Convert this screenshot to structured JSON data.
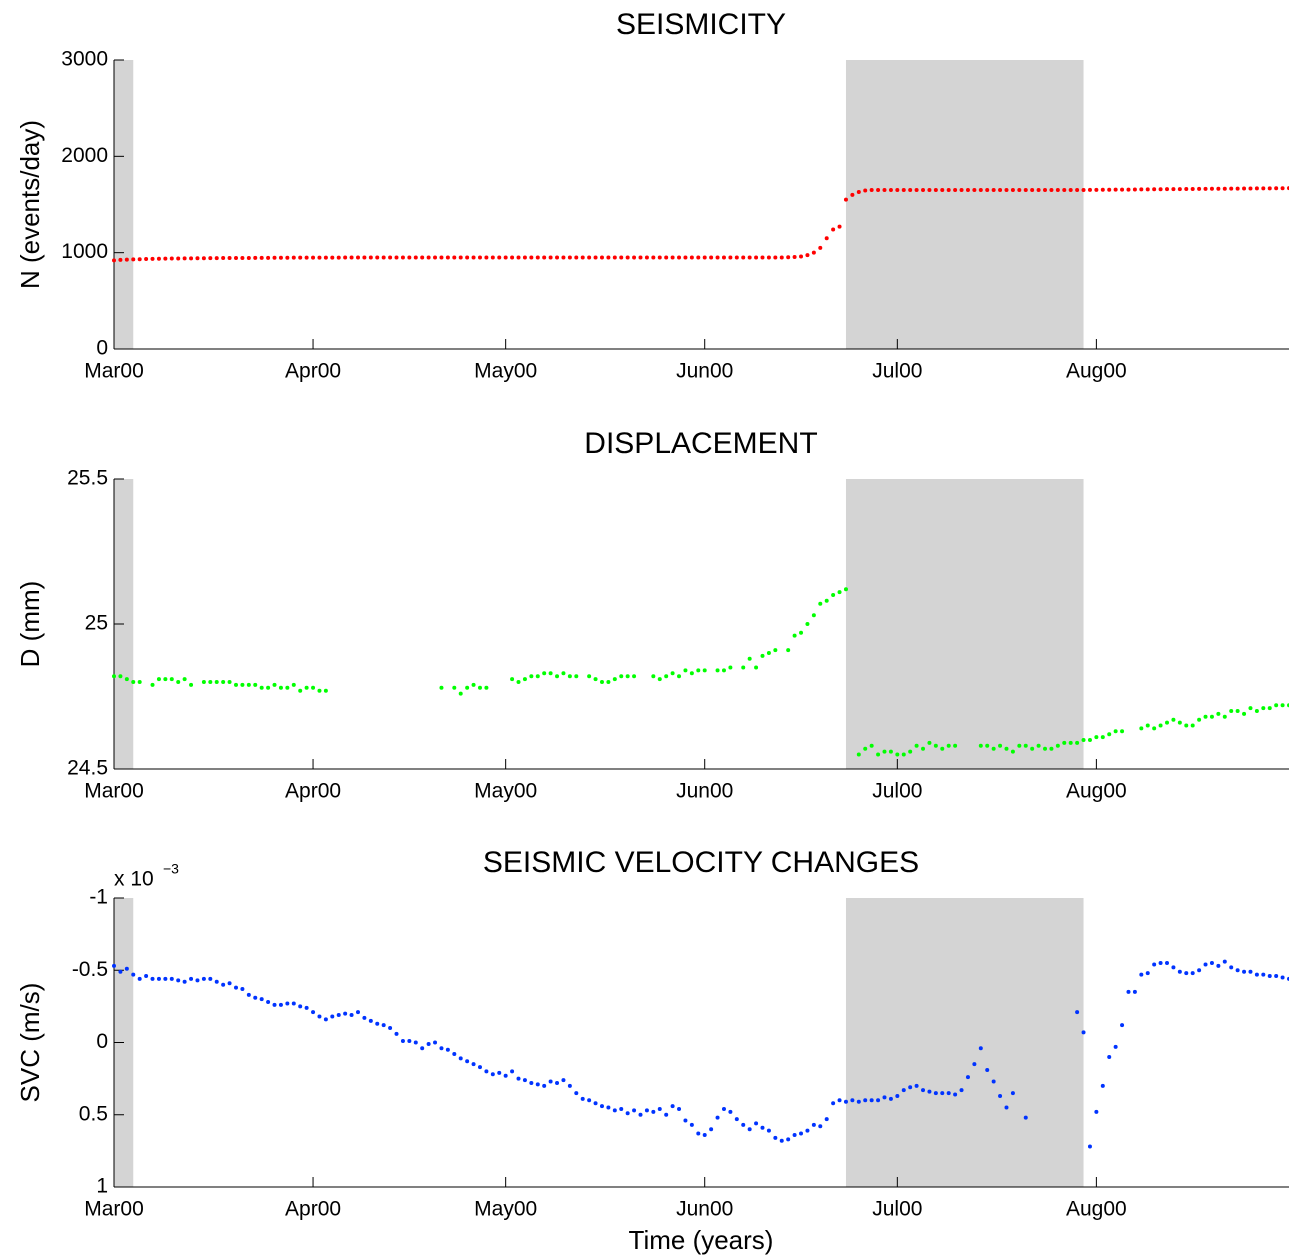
{
  "chart_data": [
    {
      "type": "scatter",
      "title": "SEISMICITY",
      "y_label": "N (events/day)",
      "color": "#ff0000",
      "xlim": [
        0,
        183
      ],
      "xticks": [
        {
          "value": 0,
          "label": "Mar00"
        },
        {
          "value": 31,
          "label": "Apr00"
        },
        {
          "value": 61,
          "label": "May00"
        },
        {
          "value": 92,
          "label": "Jun00"
        },
        {
          "value": 122,
          "label": "Jul00"
        },
        {
          "value": 153,
          "label": "Aug00"
        }
      ],
      "ylim": [
        0,
        3000
      ],
      "yticks": [
        0,
        1000,
        2000,
        3000
      ],
      "y_reversed": false,
      "shade_color": "#d4d4d4",
      "shaded_spans": [
        [
          0,
          3
        ],
        [
          114,
          151
        ]
      ],
      "x": [
        0,
        1,
        2,
        3,
        4,
        5,
        6,
        7,
        8,
        9,
        10,
        11,
        12,
        13,
        14,
        15,
        16,
        17,
        18,
        19,
        20,
        21,
        22,
        23,
        24,
        25,
        26,
        27,
        28,
        29,
        30,
        31,
        32,
        33,
        34,
        35,
        36,
        37,
        38,
        39,
        40,
        41,
        42,
        43,
        44,
        45,
        46,
        47,
        48,
        49,
        50,
        51,
        52,
        53,
        54,
        55,
        56,
        57,
        58,
        59,
        60,
        61,
        62,
        63,
        64,
        65,
        66,
        67,
        68,
        69,
        70,
        71,
        72,
        73,
        74,
        75,
        76,
        77,
        78,
        79,
        80,
        81,
        82,
        83,
        84,
        85,
        86,
        87,
        88,
        89,
        90,
        91,
        92,
        93,
        94,
        95,
        96,
        97,
        98,
        99,
        100,
        101,
        102,
        103,
        104,
        105,
        106,
        107,
        108,
        109,
        110,
        111,
        112,
        113,
        114,
        115,
        116,
        117,
        118,
        119,
        120,
        121,
        122,
        123,
        124,
        125,
        126,
        127,
        128,
        129,
        130,
        131,
        132,
        133,
        134,
        135,
        136,
        137,
        138,
        139,
        140,
        141,
        142,
        143,
        144,
        145,
        146,
        147,
        148,
        149,
        150,
        151,
        152,
        153,
        154,
        155,
        156,
        157,
        158,
        159,
        160,
        161,
        162,
        163,
        164,
        165,
        166,
        167,
        168,
        169,
        170,
        171,
        172,
        173,
        174,
        175,
        176,
        177,
        178,
        179,
        180,
        181,
        182,
        183
      ],
      "values": [
        920,
        925,
        928,
        930,
        932,
        934,
        936,
        937,
        938,
        939,
        940,
        941,
        941,
        942,
        942,
        943,
        943,
        944,
        944,
        945,
        945,
        945,
        946,
        946,
        946,
        947,
        947,
        947,
        948,
        948,
        948,
        948,
        949,
        949,
        949,
        949,
        950,
        950,
        950,
        950,
        950,
        950,
        950,
        950,
        950,
        950,
        950,
        950,
        950,
        950,
        950,
        950,
        950,
        950,
        950,
        950,
        950,
        950,
        950,
        950,
        950,
        950,
        950,
        950,
        950,
        950,
        950,
        950,
        950,
        950,
        950,
        950,
        950,
        950,
        950,
        950,
        950,
        950,
        950,
        950,
        950,
        950,
        950,
        950,
        950,
        950,
        950,
        950,
        950,
        950,
        950,
        950,
        950,
        950,
        950,
        950,
        950,
        950,
        950,
        950,
        950,
        950,
        950,
        950,
        950,
        952,
        955,
        960,
        975,
        1000,
        1050,
        1150,
        1240,
        1270,
        1550,
        1600,
        1630,
        1645,
        1650,
        1650,
        1650,
        1650,
        1650,
        1650,
        1650,
        1650,
        1650,
        1650,
        1650,
        1650,
        1650,
        1650,
        1650,
        1650,
        1650,
        1650,
        1650,
        1650,
        1650,
        1650,
        1650,
        1650,
        1650,
        1650,
        1650,
        1650,
        1650,
        1650,
        1650,
        1650,
        1651,
        1651,
        1652,
        1652,
        1653,
        1653,
        1654,
        1655,
        1655,
        1656,
        1657,
        1657,
        1658,
        1658,
        1659,
        1660,
        1660,
        1661,
        1661,
        1662,
        1662,
        1663,
        1663,
        1664,
        1665,
        1665,
        1666,
        1666,
        1667,
        1668,
        1668,
        1669,
        1669,
        1670
      ]
    },
    {
      "type": "scatter",
      "title": "DISPLACEMENT",
      "y_label": "D (mm)",
      "color": "#00ff00",
      "xlim": [
        0,
        183
      ],
      "xticks": [
        {
          "value": 0,
          "label": "Mar00"
        },
        {
          "value": 31,
          "label": "Apr00"
        },
        {
          "value": 61,
          "label": "May00"
        },
        {
          "value": 92,
          "label": "Jun00"
        },
        {
          "value": 122,
          "label": "Jul00"
        },
        {
          "value": 153,
          "label": "Aug00"
        }
      ],
      "ylim": [
        24.5,
        25.5
      ],
      "yticks": [
        24.5,
        25,
        25.5
      ],
      "y_reversed": false,
      "shade_color": "#d4d4d4",
      "shaded_spans": [
        [
          0,
          3
        ],
        [
          114,
          151
        ]
      ],
      "x": [
        0,
        1,
        2,
        3,
        4,
        5,
        6,
        7,
        8,
        9,
        10,
        11,
        12,
        13,
        14,
        15,
        16,
        17,
        18,
        19,
        20,
        21,
        22,
        23,
        24,
        25,
        26,
        27,
        28,
        29,
        30,
        31,
        32,
        33,
        34,
        35,
        36,
        37,
        38,
        39,
        40,
        41,
        42,
        43,
        44,
        45,
        46,
        47,
        48,
        49,
        50,
        51,
        52,
        53,
        54,
        55,
        56,
        57,
        58,
        59,
        60,
        61,
        62,
        63,
        64,
        65,
        66,
        67,
        68,
        69,
        70,
        71,
        72,
        73,
        74,
        75,
        76,
        77,
        78,
        79,
        80,
        81,
        82,
        83,
        84,
        85,
        86,
        87,
        88,
        89,
        90,
        91,
        92,
        93,
        94,
        95,
        96,
        97,
        98,
        99,
        100,
        101,
        102,
        103,
        104,
        105,
        106,
        107,
        108,
        109,
        110,
        111,
        112,
        113,
        114,
        115,
        116,
        117,
        118,
        119,
        120,
        121,
        122,
        123,
        124,
        125,
        126,
        127,
        128,
        129,
        130,
        131,
        132,
        133,
        134,
        135,
        136,
        137,
        138,
        139,
        140,
        141,
        142,
        143,
        144,
        145,
        146,
        147,
        148,
        149,
        150,
        151,
        152,
        153,
        154,
        155,
        156,
        157,
        158,
        159,
        160,
        161,
        162,
        163,
        164,
        165,
        166,
        167,
        168,
        169,
        170,
        171,
        172,
        173,
        174,
        175,
        176,
        177,
        178,
        179,
        180,
        181,
        182,
        183
      ],
      "values": [
        24.82,
        24.82,
        24.81,
        24.8,
        24.8,
        null,
        24.79,
        24.81,
        24.81,
        24.81,
        24.8,
        24.81,
        24.79,
        null,
        24.8,
        24.8,
        24.8,
        24.8,
        24.8,
        24.79,
        24.79,
        24.79,
        24.79,
        24.78,
        24.78,
        24.79,
        24.78,
        24.78,
        24.79,
        24.77,
        24.78,
        24.78,
        24.77,
        24.77,
        null,
        null,
        null,
        null,
        null,
        null,
        null,
        null,
        null,
        null,
        null,
        null,
        null,
        null,
        null,
        null,
        null,
        24.78,
        null,
        24.78,
        24.76,
        24.78,
        24.79,
        24.78,
        24.78,
        null,
        null,
        null,
        24.81,
        24.8,
        24.81,
        24.82,
        24.82,
        24.83,
        24.83,
        24.82,
        24.83,
        24.82,
        24.82,
        null,
        24.82,
        24.81,
        24.8,
        24.8,
        24.81,
        24.82,
        24.82,
        24.82,
        null,
        null,
        24.82,
        24.81,
        24.82,
        24.83,
        24.82,
        24.84,
        24.83,
        24.84,
        24.84,
        null,
        24.84,
        24.84,
        24.85,
        null,
        24.85,
        24.88,
        24.85,
        24.89,
        24.9,
        24.91,
        null,
        24.91,
        24.96,
        24.97,
        25.0,
        25.03,
        25.07,
        25.08,
        25.1,
        25.11,
        25.12,
        null,
        24.55,
        24.57,
        24.58,
        24.55,
        24.56,
        24.56,
        24.55,
        24.55,
        24.56,
        24.58,
        24.57,
        24.59,
        24.58,
        24.57,
        24.58,
        24.58,
        null,
        null,
        null,
        24.58,
        24.58,
        24.57,
        24.58,
        24.57,
        24.56,
        24.58,
        24.58,
        24.57,
        24.58,
        24.57,
        24.57,
        24.58,
        24.59,
        24.59,
        24.59,
        24.6,
        24.6,
        24.61,
        24.61,
        24.62,
        24.63,
        24.63,
        null,
        null,
        24.64,
        24.65,
        24.64,
        24.65,
        24.66,
        24.67,
        24.66,
        24.65,
        24.65,
        24.67,
        24.68,
        24.68,
        24.69,
        24.68,
        24.7,
        24.7,
        24.69,
        24.71,
        24.7,
        24.71,
        24.71,
        24.72,
        24.72,
        24.72
      ]
    },
    {
      "type": "scatter",
      "title": "SEISMIC VELOCITY CHANGES",
      "y_label": "SVC (m/s)",
      "x_label": "Time (years)",
      "color": "#0033ff",
      "y_multiplier": "x 10",
      "y_multiplier_exponent": "−3",
      "xlim": [
        0,
        183
      ],
      "xticks": [
        {
          "value": 0,
          "label": "Mar00"
        },
        {
          "value": 31,
          "label": "Apr00"
        },
        {
          "value": 61,
          "label": "May00"
        },
        {
          "value": 92,
          "label": "Jun00"
        },
        {
          "value": 122,
          "label": "Jul00"
        },
        {
          "value": 153,
          "label": "Aug00"
        }
      ],
      "ylim": [
        -1,
        1
      ],
      "yticks": [
        -1,
        -0.5,
        0,
        0.5,
        1
      ],
      "y_reversed": true,
      "shade_color": "#d4d4d4",
      "shaded_spans": [
        [
          0,
          3
        ],
        [
          114,
          151
        ]
      ],
      "x": [
        0,
        1,
        2,
        3,
        4,
        5,
        6,
        7,
        8,
        9,
        10,
        11,
        12,
        13,
        14,
        15,
        16,
        17,
        18,
        19,
        20,
        21,
        22,
        23,
        24,
        25,
        26,
        27,
        28,
        29,
        30,
        31,
        32,
        33,
        34,
        35,
        36,
        37,
        38,
        39,
        40,
        41,
        42,
        43,
        44,
        45,
        46,
        47,
        48,
        49,
        50,
        51,
        52,
        53,
        54,
        55,
        56,
        57,
        58,
        59,
        60,
        61,
        62,
        63,
        64,
        65,
        66,
        67,
        68,
        69,
        70,
        71,
        72,
        73,
        74,
        75,
        76,
        77,
        78,
        79,
        80,
        81,
        82,
        83,
        84,
        85,
        86,
        87,
        88,
        89,
        90,
        91,
        92,
        93,
        94,
        95,
        96,
        97,
        98,
        99,
        100,
        101,
        102,
        103,
        104,
        105,
        106,
        107,
        108,
        109,
        110,
        111,
        112,
        113,
        114,
        115,
        116,
        117,
        118,
        119,
        120,
        121,
        122,
        123,
        124,
        125,
        126,
        127,
        128,
        129,
        130,
        131,
        132,
        133,
        134,
        135,
        136,
        137,
        138,
        139,
        140,
        141,
        142,
        143,
        144,
        145,
        146,
        147,
        148,
        149,
        150,
        151,
        152,
        153,
        154,
        155,
        156,
        157,
        158,
        159,
        160,
        161,
        162,
        163,
        164,
        165,
        166,
        167,
        168,
        169,
        170,
        171,
        172,
        173,
        174,
        175,
        176,
        177,
        178,
        179,
        180,
        181,
        182,
        183
      ],
      "values": [
        -0.53,
        -0.49,
        -0.51,
        -0.47,
        -0.44,
        -0.46,
        -0.44,
        -0.44,
        -0.44,
        -0.44,
        -0.43,
        -0.42,
        -0.44,
        -0.43,
        -0.44,
        -0.44,
        -0.42,
        -0.4,
        -0.41,
        -0.38,
        -0.37,
        -0.33,
        -0.31,
        -0.3,
        -0.28,
        -0.26,
        -0.26,
        -0.27,
        -0.27,
        -0.25,
        -0.24,
        -0.21,
        -0.18,
        -0.16,
        -0.18,
        -0.19,
        -0.2,
        -0.19,
        -0.21,
        -0.17,
        -0.15,
        -0.13,
        -0.12,
        -0.1,
        -0.06,
        -0.01,
        -0.01,
        0.0,
        0.04,
        0.01,
        0.0,
        0.04,
        0.05,
        0.08,
        0.11,
        0.13,
        0.15,
        0.17,
        0.2,
        0.22,
        0.21,
        0.23,
        0.2,
        0.25,
        0.26,
        0.28,
        0.29,
        0.3,
        0.27,
        0.28,
        0.26,
        0.3,
        0.35,
        0.39,
        0.4,
        0.42,
        0.44,
        0.45,
        0.47,
        0.46,
        0.49,
        0.47,
        0.5,
        0.47,
        0.48,
        0.46,
        0.5,
        0.44,
        0.46,
        0.54,
        0.57,
        0.63,
        0.64,
        0.6,
        0.52,
        0.46,
        0.48,
        0.53,
        0.57,
        0.6,
        0.56,
        0.59,
        0.61,
        0.66,
        0.68,
        0.67,
        0.64,
        0.63,
        0.61,
        0.57,
        0.58,
        0.53,
        0.42,
        0.4,
        0.41,
        0.4,
        0.41,
        0.4,
        0.4,
        0.4,
        0.38,
        0.39,
        0.37,
        0.33,
        0.31,
        0.3,
        0.33,
        0.34,
        0.35,
        0.35,
        0.35,
        0.36,
        0.33,
        0.24,
        0.15,
        0.04,
        0.19,
        0.27,
        0.37,
        0.45,
        0.35,
        null,
        0.52,
        null,
        null,
        null,
        null,
        null,
        null,
        null,
        -0.21,
        -0.07,
        0.72,
        0.48,
        0.3,
        0.1,
        0.03,
        -0.12,
        -0.35,
        -0.35,
        -0.47,
        -0.48,
        -0.54,
        -0.55,
        -0.55,
        -0.52,
        -0.49,
        -0.48,
        -0.48,
        -0.5,
        -0.54,
        -0.55,
        -0.53,
        -0.56,
        -0.52,
        -0.5,
        -0.49,
        -0.49,
        -0.47,
        -0.47,
        -0.46,
        -0.46,
        -0.45,
        -0.44
      ]
    }
  ]
}
